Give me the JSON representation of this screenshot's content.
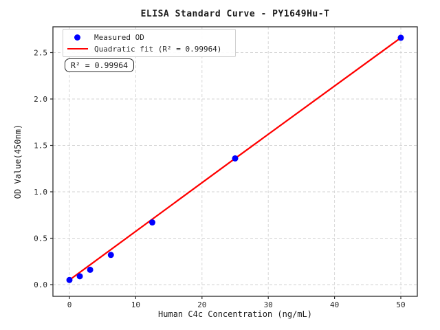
{
  "chart_data": {
    "type": "scatter",
    "title": "ELISA Standard Curve - PY1649Hu-T",
    "xlabel": "Human C4c Concentration (ng/mL)",
    "ylabel": "OD Value(450nm)",
    "annotation": "R² = 0.99964",
    "grid": true,
    "legend_position": "upper left",
    "xlim": [
      -2.5,
      52.5
    ],
    "ylim": [
      -0.13,
      2.78
    ],
    "x_ticks": {
      "values": [
        0,
        10,
        20,
        30,
        40,
        50
      ],
      "labels": [
        "0",
        "10",
        "20",
        "30",
        "40",
        "50"
      ]
    },
    "y_ticks": {
      "values": [
        0,
        0.5,
        1.0,
        1.5,
        2.0,
        2.5
      ],
      "labels": [
        "0.0",
        "0.5",
        "1.0",
        "1.5",
        "2.0",
        "2.5"
      ]
    },
    "series": [
      {
        "name": "Measured OD",
        "kind": "scatter",
        "color": "#0000ff",
        "x": [
          0,
          1.5625,
          3.125,
          6.25,
          12.5,
          25,
          50
        ],
        "y": [
          0.05,
          0.09,
          0.16,
          0.32,
          0.67,
          1.36,
          2.66
        ]
      },
      {
        "name": "Quadratic fit (R² = 0.99964)",
        "kind": "line",
        "color": "#ff0000",
        "x": [
          0,
          25,
          50
        ],
        "y": [
          0.05,
          1.36,
          2.66
        ]
      }
    ],
    "colors": {
      "marker": "#0000ff",
      "fit_line": "#ff0000",
      "grid": "#d3d3d3",
      "axis": "#2b2b2b",
      "background": "#ffffff"
    }
  }
}
